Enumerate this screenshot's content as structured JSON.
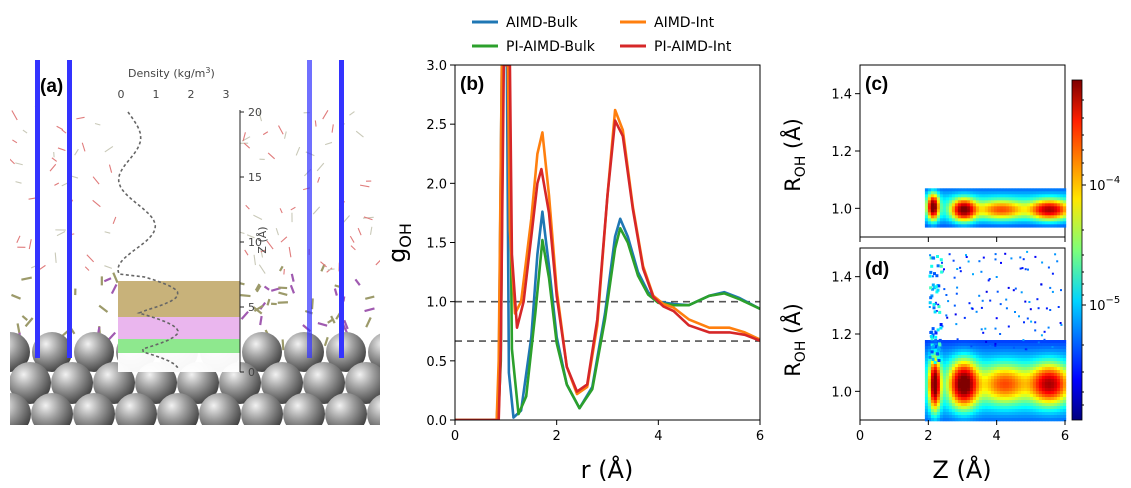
{
  "panel_a": {
    "label": "(a)",
    "density_label": "Density (kg/m",
    "density_sup": "3",
    "density_close": ")",
    "x_ticks": [
      "0",
      "1",
      "2",
      "3"
    ],
    "z_ticks": [
      "0",
      "5",
      "10",
      "15",
      "20"
    ],
    "z_label": "Z (Å)",
    "colors": {
      "band_top": "#c8b27a",
      "band_mid": "#eab6ee",
      "band_low": "#8ee88e",
      "metal": "#888888"
    }
  },
  "chart_data": [
    {
      "id": "b",
      "type": "line",
      "panel_label": "(b)",
      "xlabel": "r (Å)",
      "ylabel_main": "g",
      "ylabel_sub": "OH",
      "xlim": [
        0,
        6
      ],
      "ylim": [
        0,
        3.0
      ],
      "x_ticks": [
        "0",
        "2",
        "4",
        "6"
      ],
      "y_ticks": [
        "0.0",
        "0.5",
        "1.0",
        "1.5",
        "2.0",
        "2.5",
        "3.0"
      ],
      "reference_lines": [
        1.0,
        0.667
      ],
      "legend_position": "top, outside plot",
      "series": [
        {
          "name": "AIMD-Bulk",
          "color": "#1f77b4",
          "points": [
            [
              0,
              0
            ],
            [
              0.82,
              0
            ],
            [
              0.86,
              0.3
            ],
            [
              0.92,
              3.0
            ],
            [
              1.02,
              3.0
            ],
            [
              1.06,
              0.4
            ],
            [
              1.15,
              0.02
            ],
            [
              1.3,
              0.08
            ],
            [
              1.5,
              0.7
            ],
            [
              1.62,
              1.4
            ],
            [
              1.72,
              1.76
            ],
            [
              1.85,
              1.3
            ],
            [
              2.0,
              0.7
            ],
            [
              2.2,
              0.3
            ],
            [
              2.45,
              0.1
            ],
            [
              2.7,
              0.28
            ],
            [
              2.95,
              0.9
            ],
            [
              3.15,
              1.55
            ],
            [
              3.25,
              1.7
            ],
            [
              3.4,
              1.55
            ],
            [
              3.6,
              1.25
            ],
            [
              3.8,
              1.08
            ],
            [
              4.0,
              1.0
            ],
            [
              4.3,
              0.98
            ],
            [
              4.6,
              0.97
            ],
            [
              5.0,
              1.05
            ],
            [
              5.3,
              1.08
            ],
            [
              5.6,
              1.03
            ],
            [
              6,
              0.94
            ]
          ]
        },
        {
          "name": "PI-AIMD-Bulk",
          "color": "#2ca02c",
          "points": [
            [
              0,
              0
            ],
            [
              0.85,
              0
            ],
            [
              0.9,
              0.5
            ],
            [
              0.95,
              3.0
            ],
            [
              1.07,
              3.0
            ],
            [
              1.12,
              0.6
            ],
            [
              1.25,
              0.05
            ],
            [
              1.4,
              0.2
            ],
            [
              1.58,
              0.9
            ],
            [
              1.72,
              1.52
            ],
            [
              1.85,
              1.2
            ],
            [
              2.0,
              0.65
            ],
            [
              2.2,
              0.3
            ],
            [
              2.45,
              0.1
            ],
            [
              2.7,
              0.26
            ],
            [
              2.95,
              0.85
            ],
            [
              3.15,
              1.45
            ],
            [
              3.25,
              1.62
            ],
            [
              3.4,
              1.5
            ],
            [
              3.6,
              1.22
            ],
            [
              3.8,
              1.06
            ],
            [
              4.0,
              0.99
            ],
            [
              4.3,
              0.97
            ],
            [
              4.6,
              0.97
            ],
            [
              5.0,
              1.05
            ],
            [
              5.3,
              1.07
            ],
            [
              5.6,
              1.02
            ],
            [
              6,
              0.94
            ]
          ]
        },
        {
          "name": "AIMD-Int",
          "color": "#ff7f0e",
          "points": [
            [
              0,
              0
            ],
            [
              0.82,
              0
            ],
            [
              0.86,
              0.5
            ],
            [
              0.92,
              3.0
            ],
            [
              1.04,
              3.0
            ],
            [
              1.08,
              1.6
            ],
            [
              1.18,
              0.9
            ],
            [
              1.3,
              1.0
            ],
            [
              1.5,
              1.7
            ],
            [
              1.62,
              2.25
            ],
            [
              1.72,
              2.43
            ],
            [
              1.85,
              1.9
            ],
            [
              2.0,
              1.1
            ],
            [
              2.2,
              0.45
            ],
            [
              2.4,
              0.22
            ],
            [
              2.6,
              0.28
            ],
            [
              2.8,
              0.8
            ],
            [
              3.0,
              1.9
            ],
            [
              3.15,
              2.62
            ],
            [
              3.3,
              2.45
            ],
            [
              3.5,
              1.8
            ],
            [
              3.7,
              1.3
            ],
            [
              3.9,
              1.05
            ],
            [
              4.1,
              0.98
            ],
            [
              4.3,
              0.95
            ],
            [
              4.6,
              0.85
            ],
            [
              5.0,
              0.78
            ],
            [
              5.4,
              0.78
            ],
            [
              5.7,
              0.74
            ],
            [
              6,
              0.68
            ]
          ]
        },
        {
          "name": "PI-AIMD-Int",
          "color": "#d62728",
          "points": [
            [
              0,
              0
            ],
            [
              0.86,
              0
            ],
            [
              0.9,
              0.6
            ],
            [
              0.96,
              3.0
            ],
            [
              1.08,
              3.0
            ],
            [
              1.12,
              1.4
            ],
            [
              1.22,
              0.78
            ],
            [
              1.35,
              1.0
            ],
            [
              1.5,
              1.55
            ],
            [
              1.62,
              2.0
            ],
            [
              1.7,
              2.12
            ],
            [
              1.85,
              1.75
            ],
            [
              2.0,
              1.05
            ],
            [
              2.2,
              0.45
            ],
            [
              2.4,
              0.24
            ],
            [
              2.6,
              0.3
            ],
            [
              2.8,
              0.85
            ],
            [
              3.0,
              1.9
            ],
            [
              3.15,
              2.53
            ],
            [
              3.3,
              2.4
            ],
            [
              3.5,
              1.78
            ],
            [
              3.7,
              1.28
            ],
            [
              3.9,
              1.04
            ],
            [
              4.1,
              0.96
            ],
            [
              4.3,
              0.92
            ],
            [
              4.6,
              0.8
            ],
            [
              5.0,
              0.74
            ],
            [
              5.4,
              0.74
            ],
            [
              5.7,
              0.72
            ],
            [
              6,
              0.67
            ]
          ]
        }
      ]
    },
    {
      "id": "c",
      "type": "heatmap",
      "panel_label": "(c)",
      "ylabel_main": "R",
      "ylabel_sub": "OH",
      "ylabel_tail": " (Å)",
      "xlim": [
        0,
        6
      ],
      "ylim": [
        0.9,
        1.5
      ],
      "y_ticks": [
        "1.0",
        "1.2",
        "1.4"
      ],
      "blobs": [
        {
          "z": 2.1,
          "r": 1.01,
          "sz": 0.1,
          "sr": 0.025,
          "amp": 1.0
        },
        {
          "z": 3.0,
          "r": 1.0,
          "sz": 0.22,
          "sr": 0.022,
          "amp": 0.9
        },
        {
          "z": 4.1,
          "r": 1.0,
          "sz": 0.45,
          "sr": 0.02,
          "amp": 0.45
        },
        {
          "z": 5.5,
          "r": 1.0,
          "sz": 0.35,
          "sr": 0.02,
          "amp": 0.75
        }
      ],
      "extent": {
        "z_min": 1.9,
        "z_max": 6.0,
        "r_min": 0.94,
        "r_max": 1.07
      }
    },
    {
      "id": "d",
      "type": "heatmap",
      "panel_label": "(d)",
      "xlabel": "Z (Å)",
      "ylabel_main": "R",
      "ylabel_sub": "OH",
      "ylabel_tail": " (Å)",
      "xlim": [
        0,
        6
      ],
      "ylim": [
        0.9,
        1.5
      ],
      "x_ticks": [
        "0",
        "2",
        "4",
        "6"
      ],
      "y_ticks": [
        "1.0",
        "1.2",
        "1.4"
      ],
      "blobs": [
        {
          "z": 2.15,
          "r": 1.03,
          "sz": 0.1,
          "sr": 0.05,
          "amp": 1.0
        },
        {
          "z": 3.0,
          "r": 1.03,
          "sz": 0.25,
          "sr": 0.045,
          "amp": 1.0
        },
        {
          "z": 4.2,
          "r": 1.03,
          "sz": 0.45,
          "sr": 0.04,
          "amp": 0.45
        },
        {
          "z": 5.5,
          "r": 1.03,
          "sz": 0.35,
          "sr": 0.04,
          "amp": 0.75
        }
      ],
      "extent": {
        "z_min": 1.9,
        "z_max": 6.0,
        "r_min": 0.9,
        "r_max": 1.2
      }
    }
  ],
  "colorbar": {
    "labels": [
      {
        "base": "10",
        "exp": "−4"
      },
      {
        "base": "10",
        "exp": "−5"
      }
    ],
    "colormap": "jet"
  }
}
